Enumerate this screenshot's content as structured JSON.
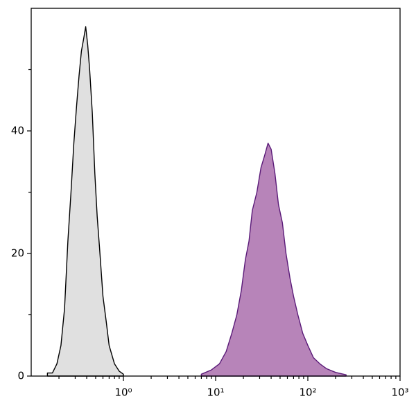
{
  "chart_data": {
    "type": "area",
    "xscale": "log",
    "xlim": [
      0.1,
      1000
    ],
    "ylim": [
      0,
      60
    ],
    "xticks": [
      {
        "value": 1,
        "label": "10⁰"
      },
      {
        "value": 10,
        "label": "10¹"
      },
      {
        "value": 100,
        "label": "10²"
      },
      {
        "value": 1000,
        "label": "10³"
      }
    ],
    "xminorticks": [
      0.2,
      0.3,
      0.4,
      0.5,
      0.6,
      0.7,
      0.8,
      0.9,
      2,
      3,
      4,
      5,
      6,
      7,
      8,
      9,
      20,
      30,
      40,
      50,
      60,
      70,
      80,
      90,
      200,
      300,
      400,
      500,
      600,
      700,
      800,
      900
    ],
    "yticks": [
      0,
      20,
      40
    ],
    "yminorticks": [
      10,
      30,
      50
    ],
    "series": [
      {
        "color": "#000000",
        "fill": "#e0e0e0",
        "x": [
          0.15,
          0.17,
          0.19,
          0.21,
          0.23,
          0.25,
          0.27,
          0.29,
          0.31,
          0.33,
          0.35,
          0.37,
          0.39,
          0.41,
          0.43,
          0.46,
          0.49,
          0.52,
          0.55,
          0.6,
          0.65,
          0.7,
          0.8,
          0.9,
          1.0
        ],
        "values": [
          0.5,
          0.5,
          2,
          5,
          11,
          22,
          30,
          38,
          44,
          49,
          53,
          55,
          57,
          54,
          50,
          43,
          33,
          26,
          21,
          13,
          9,
          5,
          2,
          0.8,
          0.3
        ]
      },
      {
        "color": "#5a1a78",
        "fill": "#b784b9",
        "x": [
          7,
          9,
          11,
          13,
          15,
          17,
          19,
          21,
          23,
          25,
          28,
          31,
          34,
          37,
          40,
          44,
          48,
          53,
          58,
          64,
          70,
          78,
          88,
          100,
          115,
          135,
          160,
          200,
          260
        ],
        "values": [
          0.3,
          1,
          2,
          4,
          7,
          10,
          14,
          19,
          22,
          27,
          30,
          34,
          36,
          38,
          37,
          33,
          28,
          25,
          20,
          16,
          13,
          10,
          7,
          5,
          3,
          2,
          1.2,
          0.6,
          0.2
        ]
      }
    ]
  }
}
